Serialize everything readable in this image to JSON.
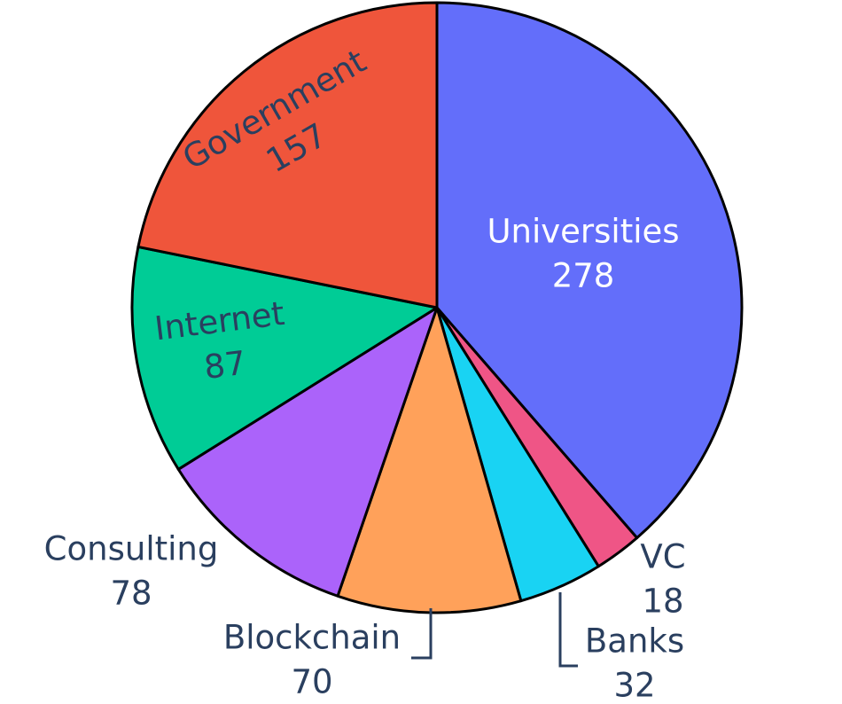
{
  "chart_data": {
    "type": "pie",
    "title": "",
    "categories": [
      "Universities",
      "VC",
      "Banks",
      "Blockchain",
      "Consulting",
      "Internet",
      "Government"
    ],
    "values": [
      278,
      18,
      32,
      70,
      78,
      87,
      157
    ],
    "value_labels": [
      "278",
      "18",
      "32",
      "70",
      "78",
      "87",
      "157"
    ],
    "colors": [
      "#636efa",
      "#ef5586",
      "#19d3f3",
      "#ffa15a",
      "#ab63fa",
      "#00cc96",
      "#ef553b"
    ],
    "start_angle_deg": 90,
    "direction": "clockwise",
    "legend": "none",
    "label_text_colors": {
      "inside_dark_bg": "#ffffff",
      "inside_light_bg": "#2a3f5f",
      "outside": "#2a3f5f"
    }
  }
}
